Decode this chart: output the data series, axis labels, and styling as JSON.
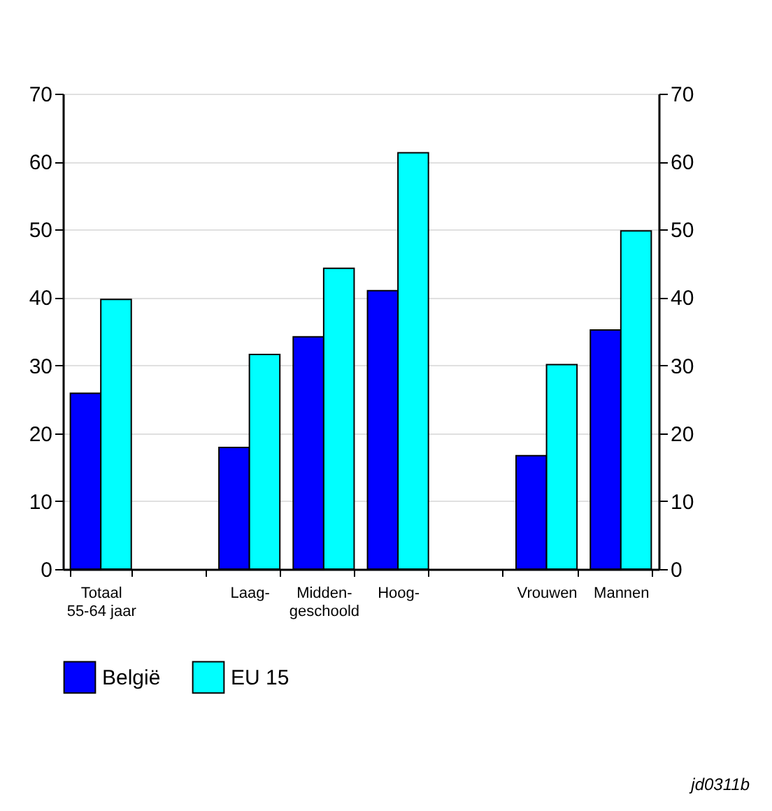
{
  "chart_data": {
    "type": "bar",
    "categories": [
      "Totaal\n55-64 jaar",
      null,
      "Laag-",
      "Midden-\ngeschoold",
      "Hoog-",
      null,
      "Vrouwen",
      "Mannen"
    ],
    "series": [
      {
        "name": "België",
        "color": "#0000ff",
        "values": [
          25.9,
          null,
          17.9,
          34.2,
          41.0,
          null,
          16.7,
          35.2
        ]
      },
      {
        "name": "EU 15",
        "color": "#00ffff",
        "values": [
          39.7,
          null,
          31.6,
          44.3,
          61.3,
          null,
          30.1,
          49.8
        ]
      }
    ],
    "ylim": [
      0,
      70
    ],
    "yticks": [
      0,
      10,
      20,
      30,
      40,
      50,
      60,
      70
    ],
    "y2lim": [
      0,
      70
    ],
    "y2ticks": [
      0,
      10,
      20,
      30,
      40,
      50,
      60,
      70
    ],
    "grid": "y",
    "legend": "bottom",
    "annotations": [
      "jd0311b"
    ]
  }
}
